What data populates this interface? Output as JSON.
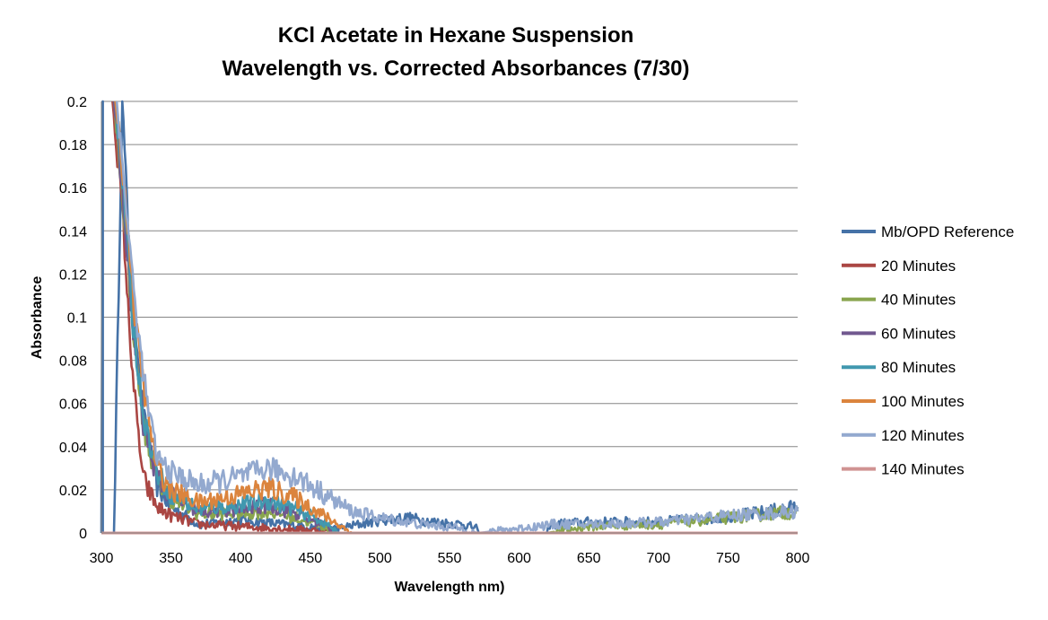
{
  "chart_data": {
    "type": "line",
    "title": [
      "KCl Acetate in Hexane Suspension",
      "Wavelength vs. Corrected Absorbances (7/30)"
    ],
    "xlabel": "Wavelength nm)",
    "ylabel": "Absorbance",
    "xlim": [
      300,
      800
    ],
    "ylim": [
      0,
      0.2
    ],
    "xticks": [
      "300",
      "350",
      "400",
      "450",
      "500",
      "550",
      "600",
      "650",
      "700",
      "750",
      "800"
    ],
    "yticks": [
      "0",
      "0.02",
      "0.04",
      "0.06",
      "0.08",
      "0.1",
      "0.12",
      "0.14",
      "0.16",
      "0.18",
      "0.2"
    ],
    "grid": "horizontal",
    "legend_position": "right",
    "series": [
      {
        "name": "Mb/OPD Reference",
        "color": "#4572a7",
        "x": [
          300,
          301,
          301,
          309,
          315,
          320,
          330,
          340,
          350,
          370,
          400,
          430,
          470,
          500,
          520,
          540,
          560,
          570,
          571,
          620,
          622,
          650,
          700,
          740,
          770,
          800
        ],
        "y": [
          0,
          0.2,
          0,
          0,
          0.2,
          0.13,
          0.055,
          0.022,
          0.012,
          0.004,
          0.006,
          0.004,
          0.002,
          0.006,
          0.007,
          0.005,
          0.004,
          0.002,
          0,
          0,
          0.004,
          0.005,
          0.005,
          0.007,
          0.009,
          0.012
        ]
      },
      {
        "name": "20 Minutes",
        "color": "#aa4643",
        "x": [
          308,
          315,
          320,
          325,
          330,
          340,
          350,
          370,
          400,
          430,
          460,
          470
        ],
        "y": [
          0.2,
          0.15,
          0.095,
          0.055,
          0.025,
          0.012,
          0.008,
          0.004,
          0.003,
          0.002,
          0.001,
          0
        ]
      },
      {
        "name": "40 Minutes",
        "color": "#89a54e",
        "x": [
          309,
          316,
          322,
          330,
          340,
          350,
          370,
          400,
          420,
          440,
          460,
          470,
          620,
          650,
          700,
          750,
          800
        ],
        "y": [
          0.2,
          0.15,
          0.1,
          0.05,
          0.025,
          0.016,
          0.009,
          0.009,
          0.01,
          0.007,
          0.003,
          0,
          0,
          0.003,
          0.004,
          0.007,
          0.01
        ]
      },
      {
        "name": "60 Minutes",
        "color": "#71588f",
        "x": [
          309,
          316,
          322,
          330,
          340,
          350,
          370,
          400,
          420,
          440,
          460,
          470
        ],
        "y": [
          0.2,
          0.15,
          0.1,
          0.05,
          0.026,
          0.017,
          0.01,
          0.011,
          0.013,
          0.009,
          0.004,
          0
        ]
      },
      {
        "name": "80 Minutes",
        "color": "#4198af",
        "x": [
          310,
          317,
          322,
          330,
          340,
          350,
          370,
          400,
          420,
          440,
          460,
          470
        ],
        "y": [
          0.2,
          0.15,
          0.1,
          0.055,
          0.028,
          0.018,
          0.011,
          0.013,
          0.015,
          0.011,
          0.005,
          0
        ]
      },
      {
        "name": "100 Minutes",
        "color": "#db843d",
        "x": [
          310,
          318,
          324,
          332,
          340,
          350,
          370,
          400,
          420,
          440,
          460,
          475,
          480
        ],
        "y": [
          0.2,
          0.15,
          0.1,
          0.06,
          0.03,
          0.02,
          0.014,
          0.018,
          0.021,
          0.016,
          0.008,
          0.002,
          0
        ]
      },
      {
        "name": "120 Minutes",
        "color": "#93a9cf",
        "x": [
          311,
          318,
          325,
          333,
          340,
          350,
          370,
          400,
          420,
          440,
          460,
          480,
          500,
          530,
          560,
          570,
          571,
          625,
          650,
          700,
          750,
          800
        ],
        "y": [
          0.2,
          0.15,
          0.1,
          0.06,
          0.035,
          0.028,
          0.022,
          0.026,
          0.03,
          0.026,
          0.018,
          0.01,
          0.007,
          0.004,
          0.002,
          0,
          0,
          0.004,
          0.004,
          0.005,
          0.008,
          0.01
        ]
      },
      {
        "name": "140 Minutes",
        "color": "#d09392",
        "x": [
          300,
          800
        ],
        "y": [
          0,
          0
        ]
      }
    ]
  }
}
